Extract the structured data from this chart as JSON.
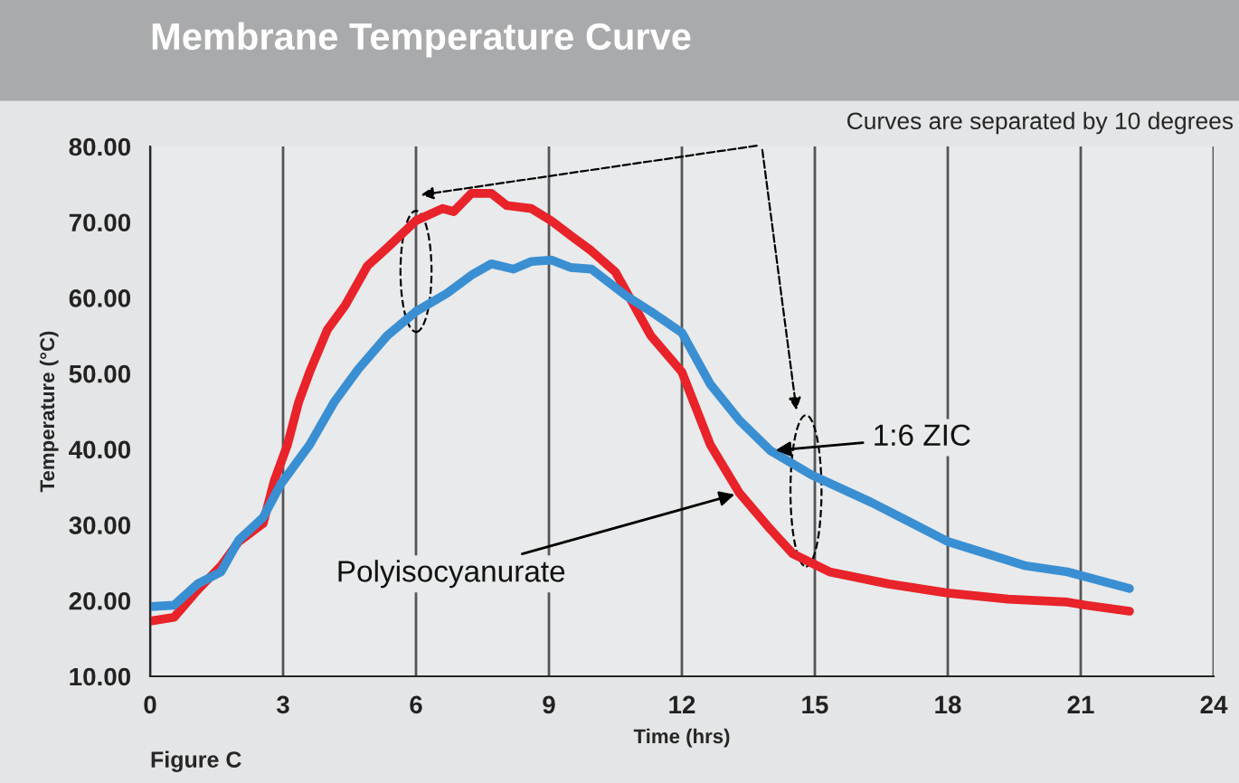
{
  "chart_data": {
    "type": "line",
    "title": "Membrane Temperature Curve",
    "xlabel": "Time (hrs)",
    "ylabel": "Temperature (°C)",
    "xlim": [
      0,
      24
    ],
    "xticks": [
      0,
      3,
      6,
      9,
      12,
      15,
      18,
      21,
      24
    ],
    "ylim": [
      10,
      80
    ],
    "yticks": [
      {
        "value": 10,
        "label": "10.00"
      },
      {
        "value": 20,
        "label": "20.00"
      },
      {
        "value": 30,
        "label": "30.00"
      },
      {
        "value": 40,
        "label": "40.00"
      },
      {
        "value": 50,
        "label": "50.00"
      },
      {
        "value": 60,
        "label": "60.00"
      },
      {
        "value": 70,
        "label": "70.00"
      },
      {
        "value": 80,
        "label": "80.00"
      }
    ],
    "grid": "x",
    "legend": false,
    "marker": "none",
    "line_style": "solid",
    "series": [
      {
        "name": "Polyisocyanurate",
        "color": "#e8232a",
        "x": [
          0,
          0.54,
          1.07,
          1.6,
          2.0,
          2.55,
          2.8,
          3.1,
          3.35,
          3.6,
          4.0,
          4.4,
          4.9,
          5.35,
          6.0,
          6.6,
          6.85,
          7.25,
          7.7,
          8.05,
          8.6,
          9.05,
          9.5,
          9.96,
          10.5,
          11.3,
          12.0,
          12.64,
          13.3,
          14.0,
          14.5,
          15.33,
          16.67,
          18.0,
          19.36,
          20.7,
          21.1,
          22.1
        ],
        "values": [
          17.3,
          17.8,
          21.4,
          24.6,
          27.8,
          30.2,
          35.8,
          40.6,
          46.2,
          50.2,
          55.8,
          59.0,
          64.2,
          66.6,
          70.2,
          71.8,
          71.4,
          73.8,
          73.8,
          72.2,
          71.8,
          70.2,
          68.2,
          66.2,
          63.4,
          55.0,
          50.2,
          40.6,
          34.2,
          29.4,
          26.2,
          23.8,
          22.2,
          21.0,
          20.2,
          19.8,
          19.4,
          18.6
        ]
      },
      {
        "name": "1:6 ZIC",
        "color": "#3a8fd3",
        "x": [
          0,
          0.54,
          1.07,
          1.6,
          2.0,
          2.55,
          2.95,
          3.6,
          4.15,
          4.7,
          5.35,
          6.0,
          6.7,
          7.25,
          7.7,
          8.2,
          8.6,
          9.05,
          9.5,
          9.96,
          10.76,
          11.3,
          12.0,
          12.64,
          13.3,
          14.0,
          14.93,
          16.27,
          18.0,
          19.76,
          20.7,
          22.1
        ],
        "values": [
          19.2,
          19.4,
          22.2,
          23.8,
          28.0,
          31.0,
          35.4,
          40.6,
          46.2,
          50.6,
          55.0,
          58.2,
          60.6,
          63.0,
          64.5,
          63.8,
          64.8,
          65.0,
          64.0,
          63.8,
          60.2,
          58.2,
          55.4,
          48.6,
          43.8,
          39.8,
          36.6,
          33.0,
          27.8,
          24.6,
          23.8,
          21.6
        ]
      }
    ],
    "annotations": [
      "Curves are separated by 10 degrees",
      "Figure C"
    ]
  }
}
